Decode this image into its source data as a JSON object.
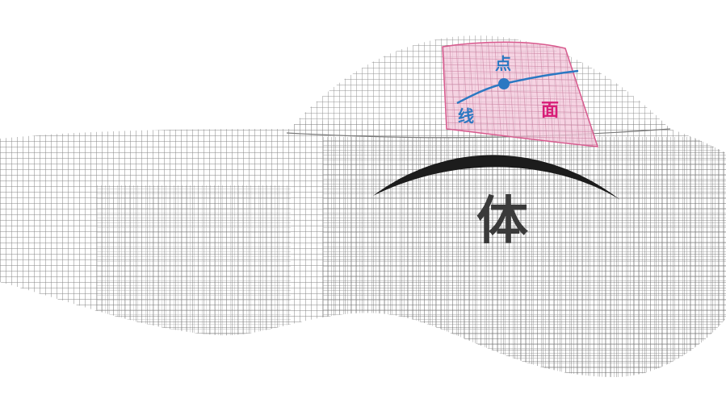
{
  "labels": {
    "point": "点",
    "line": "线",
    "surface": "面",
    "solid": "体"
  },
  "colors": {
    "background": "#ffffff",
    "mesh": "#6f6f6f",
    "mesh_dense": "#4d4d4d",
    "patch_fill": "#f3c6d9",
    "patch_border": "#d9588d",
    "point_line": "#2b78c2",
    "point_label": "#2b78c2",
    "line_label": "#2b78c2",
    "surface_label": "#d81e78",
    "solid_label": "#3a3a3a",
    "arc": "#1c1c1c"
  }
}
